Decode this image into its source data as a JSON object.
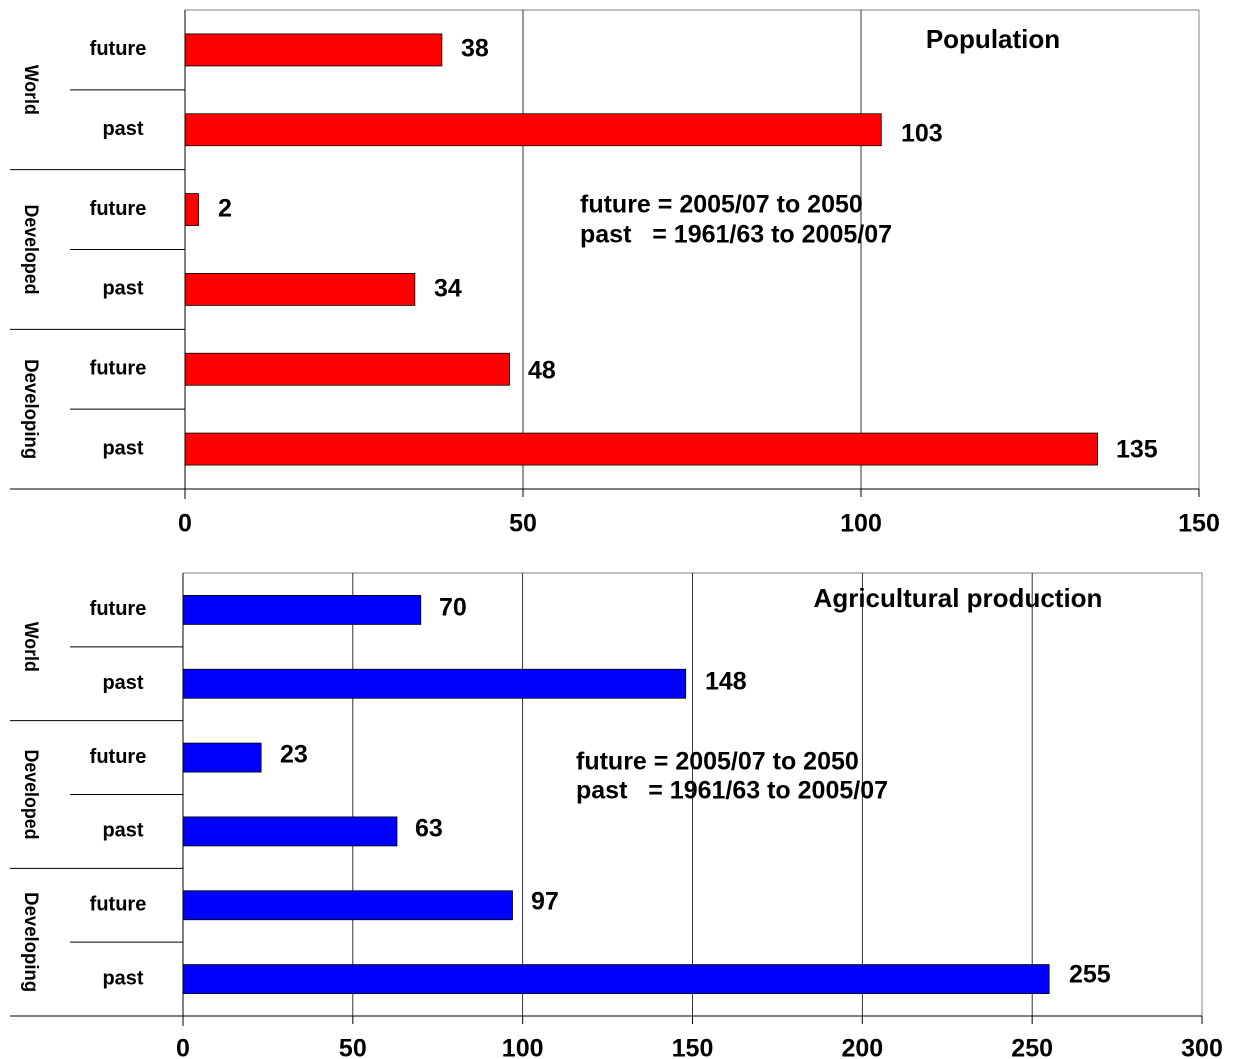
{
  "chart_data": [
    {
      "type": "bar",
      "orientation": "horizontal",
      "title": "Population",
      "groups": [
        "World",
        "Developed",
        "Developing"
      ],
      "categories": [
        "future",
        "past"
      ],
      "rows": [
        {
          "group": "World",
          "category": "future",
          "value": 38,
          "label": "38"
        },
        {
          "group": "World",
          "category": "past",
          "value": 103,
          "label": "103"
        },
        {
          "group": "Developed",
          "category": "future",
          "value": 2,
          "label": "2"
        },
        {
          "group": "Developed",
          "category": "past",
          "value": 34,
          "label": "34"
        },
        {
          "group": "Developing",
          "category": "future",
          "value": 48,
          "label": "48"
        },
        {
          "group": "Developing",
          "category": "past",
          "value": 135,
          "label": "135"
        }
      ],
      "xlim": [
        0,
        150
      ],
      "xticks": [
        0,
        50,
        100,
        150
      ],
      "xtick_labels": [
        "0",
        "50",
        "100",
        "150"
      ],
      "grid": true,
      "annotations": [
        "future = 2005/07 to 2050",
        "past   = 1961/63 to 2005/07"
      ],
      "bar_color": "#ff0000"
    },
    {
      "type": "bar",
      "orientation": "horizontal",
      "title": "Agricultural production",
      "groups": [
        "World",
        "Developed",
        "Developing"
      ],
      "categories": [
        "future",
        "past"
      ],
      "rows": [
        {
          "group": "World",
          "category": "future",
          "value": 70,
          "label": "70"
        },
        {
          "group": "World",
          "category": "past",
          "value": 148,
          "label": "148"
        },
        {
          "group": "Developed",
          "category": "future",
          "value": 23,
          "label": "23"
        },
        {
          "group": "Developed",
          "category": "past",
          "value": 63,
          "label": "63"
        },
        {
          "group": "Developing",
          "category": "future",
          "value": 97,
          "label": "97"
        },
        {
          "group": "Developing",
          "category": "past",
          "value": 255,
          "label": "255"
        }
      ],
      "xlim": [
        0,
        300
      ],
      "xticks": [
        0,
        50,
        100,
        150,
        200,
        250,
        300
      ],
      "xtick_labels": [
        "0",
        "50",
        "100",
        "150",
        "200",
        "250",
        "300"
      ],
      "grid": true,
      "annotations": [
        "future = 2005/07 to 2050",
        "past   = 1961/63 to 2005/07"
      ],
      "bar_color": "#0000ff"
    }
  ]
}
